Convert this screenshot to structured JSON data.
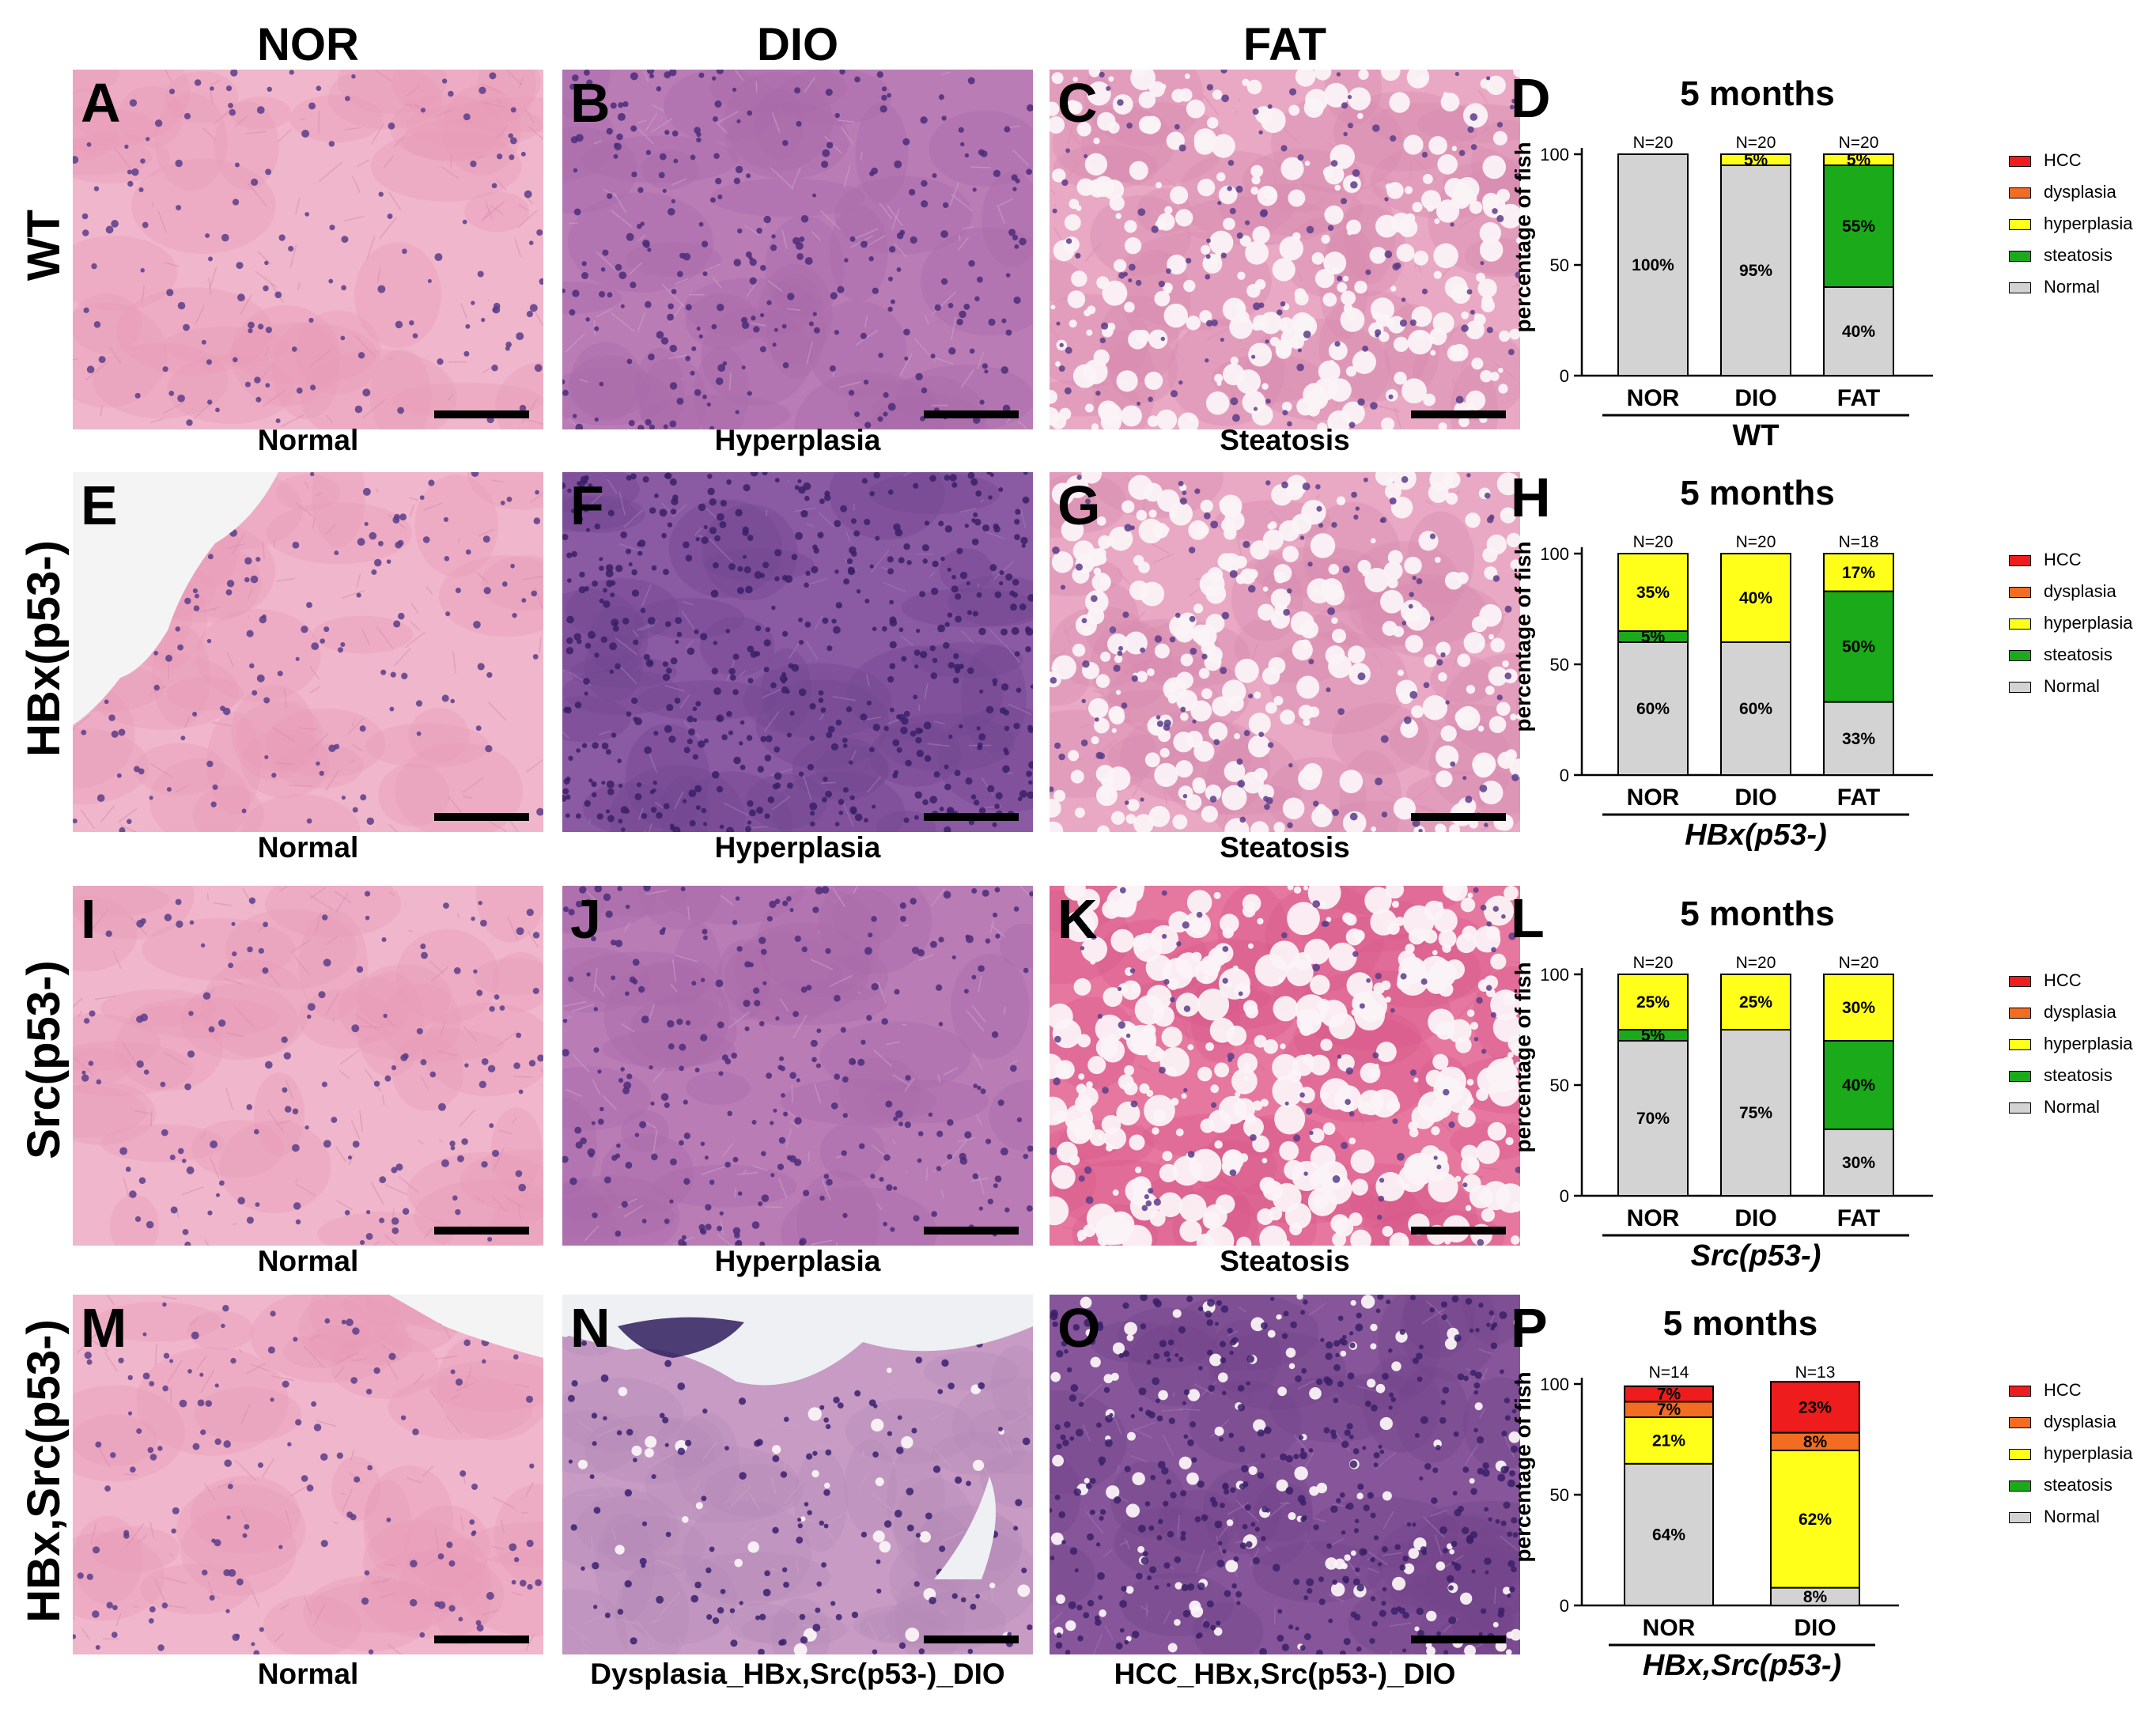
{
  "columns": [
    "NOR",
    "DIO",
    "FAT"
  ],
  "rows": [
    {
      "genotype": "WT",
      "panels": [
        {
          "letter": "A",
          "caption": "Normal",
          "style": "normal"
        },
        {
          "letter": "B",
          "caption": "Hyperplasia",
          "style": "hyper"
        },
        {
          "letter": "C",
          "caption": "Steatosis",
          "style": "steat"
        }
      ]
    },
    {
      "genotype": "HBx(p53-)",
      "panels": [
        {
          "letter": "E",
          "caption": "Normal",
          "style": "normal"
        },
        {
          "letter": "F",
          "caption": "Hyperplasia",
          "style": "hyperdark"
        },
        {
          "letter": "G",
          "caption": "Steatosis",
          "style": "steat"
        }
      ]
    },
    {
      "genotype": "Src(p53-)",
      "panels": [
        {
          "letter": "I",
          "caption": "Normal",
          "style": "normal"
        },
        {
          "letter": "J",
          "caption": "Hyperplasia",
          "style": "hyper"
        },
        {
          "letter": "K",
          "caption": "Steatosis",
          "style": "steatheavy"
        }
      ]
    },
    {
      "genotype": "HBx,Src(p53-)",
      "panels": [
        {
          "letter": "M",
          "caption": "Normal",
          "style": "normal"
        },
        {
          "letter": "N",
          "caption": "Dysplasia_HBx,Src(p53-)_DIO",
          "style": "dysplasia"
        },
        {
          "letter": "O",
          "caption": "HCC_HBx,Src(p53-)_DIO",
          "style": "hcc"
        }
      ]
    }
  ],
  "legend": [
    "HCC",
    "dysplasia",
    "hyperplasia",
    "steatosis",
    "Normal"
  ],
  "colors": {
    "HCC": "#ee1c1c",
    "dysplasia": "#f26d21",
    "hyperplasia": "#ffff1a",
    "steatosis": "#1aaa1a",
    "Normal": "#d3d3d3"
  },
  "chart_data": [
    {
      "panel": "D",
      "type": "bar",
      "stacked": true,
      "title": "5 months",
      "ylabel": "percentage of fish",
      "ylim": [
        0,
        100
      ],
      "yticks": [
        0,
        50,
        100
      ],
      "group_label": "WT",
      "group_label_italic": false,
      "categories": [
        "NOR",
        "DIO",
        "FAT"
      ],
      "n_labels": [
        "N=20",
        "N=20",
        "N=20"
      ],
      "series": [
        {
          "name": "Normal",
          "values": [
            100,
            95,
            40
          ],
          "labels": [
            "100%",
            "95%",
            "40%"
          ]
        },
        {
          "name": "steatosis",
          "values": [
            0,
            0,
            55
          ],
          "labels": [
            "",
            "",
            "55%"
          ]
        },
        {
          "name": "hyperplasia",
          "values": [
            0,
            5,
            5
          ],
          "labels": [
            "",
            "5%",
            "5%"
          ]
        },
        {
          "name": "dysplasia",
          "values": [
            0,
            0,
            0
          ],
          "labels": [
            "",
            "",
            ""
          ]
        },
        {
          "name": "HCC",
          "values": [
            0,
            0,
            0
          ],
          "labels": [
            "",
            "",
            ""
          ]
        }
      ]
    },
    {
      "panel": "H",
      "type": "bar",
      "stacked": true,
      "title": "5 months",
      "ylabel": "percentage of fish",
      "ylim": [
        0,
        100
      ],
      "yticks": [
        0,
        50,
        100
      ],
      "group_label": "HBx(p53-)",
      "group_label_italic": true,
      "categories": [
        "NOR",
        "DIO",
        "FAT"
      ],
      "n_labels": [
        "N=20",
        "N=20",
        "N=18"
      ],
      "series": [
        {
          "name": "Normal",
          "values": [
            60,
            60,
            33
          ],
          "labels": [
            "60%",
            "60%",
            "33%"
          ]
        },
        {
          "name": "steatosis",
          "values": [
            5,
            0,
            50
          ],
          "labels": [
            "5%",
            "",
            "50%"
          ]
        },
        {
          "name": "hyperplasia",
          "values": [
            35,
            40,
            17
          ],
          "labels": [
            "35%",
            "40%",
            "17%"
          ]
        },
        {
          "name": "dysplasia",
          "values": [
            0,
            0,
            0
          ],
          "labels": [
            "",
            "",
            ""
          ]
        },
        {
          "name": "HCC",
          "values": [
            0,
            0,
            0
          ],
          "labels": [
            "",
            "",
            ""
          ]
        }
      ]
    },
    {
      "panel": "L",
      "type": "bar",
      "stacked": true,
      "title": "5 months",
      "ylabel": "percentage of fish",
      "ylim": [
        0,
        100
      ],
      "yticks": [
        0,
        50,
        100
      ],
      "group_label": "Src(p53-)",
      "group_label_italic": true,
      "categories": [
        "NOR",
        "DIO",
        "FAT"
      ],
      "n_labels": [
        "N=20",
        "N=20",
        "N=20"
      ],
      "series": [
        {
          "name": "Normal",
          "values": [
            70,
            75,
            30
          ],
          "labels": [
            "70%",
            "75%",
            "30%"
          ]
        },
        {
          "name": "steatosis",
          "values": [
            5,
            0,
            40
          ],
          "labels": [
            "5%",
            "",
            "40%"
          ]
        },
        {
          "name": "hyperplasia",
          "values": [
            25,
            25,
            30
          ],
          "labels": [
            "25%",
            "25%",
            "30%"
          ]
        },
        {
          "name": "dysplasia",
          "values": [
            0,
            0,
            0
          ],
          "labels": [
            "",
            "",
            ""
          ]
        },
        {
          "name": "HCC",
          "values": [
            0,
            0,
            0
          ],
          "labels": [
            "",
            "",
            ""
          ]
        }
      ]
    },
    {
      "panel": "P",
      "type": "bar",
      "stacked": true,
      "title": "5 months",
      "ylabel": "percentage of fish",
      "ylim": [
        0,
        100
      ],
      "yticks": [
        0,
        50,
        100
      ],
      "group_label": "HBx,Src(p53-)",
      "group_label_italic": true,
      "categories": [
        "NOR",
        "DIO"
      ],
      "n_labels": [
        "N=14",
        "N=13"
      ],
      "series": [
        {
          "name": "Normal",
          "values": [
            64,
            8
          ],
          "labels": [
            "64%",
            "8%"
          ]
        },
        {
          "name": "steatosis",
          "values": [
            0,
            0
          ],
          "labels": [
            "",
            ""
          ]
        },
        {
          "name": "hyperplasia",
          "values": [
            21,
            62
          ],
          "labels": [
            "21%",
            "62%"
          ]
        },
        {
          "name": "dysplasia",
          "values": [
            7,
            8
          ],
          "labels": [
            "7%",
            "8%"
          ]
        },
        {
          "name": "HCC",
          "values": [
            7,
            23
          ],
          "labels": [
            "7%",
            "23%"
          ]
        }
      ]
    }
  ]
}
